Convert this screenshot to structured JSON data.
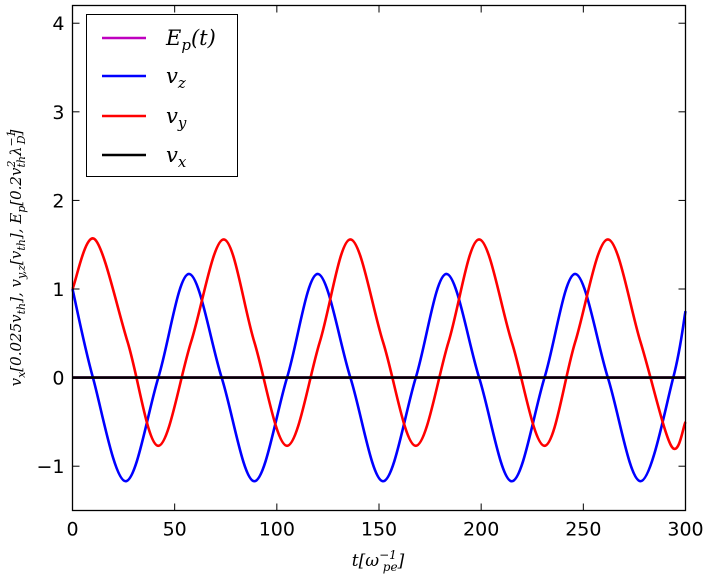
{
  "chart_data": {
    "type": "line",
    "title": "",
    "xlabel": "t[ω_pe^{-1}]",
    "ylabel": "v_x[0.025v_th], v_{y,z}[v_th], E_p[0.2v_th^2 λ_D^{-1}]",
    "xlim": [
      0,
      300
    ],
    "ylim": [
      -1.5,
      4.2
    ],
    "xticks": [
      0,
      50,
      100,
      150,
      200,
      250,
      300
    ],
    "yticks": [
      -1,
      0,
      1,
      2,
      3,
      4
    ],
    "xtick_labels": [
      "0",
      "50",
      "100",
      "150",
      "200",
      "250",
      "300"
    ],
    "ytick_labels": [
      "−1",
      "0",
      "1",
      "2",
      "3",
      "4"
    ],
    "grid": false,
    "legend_position": "top-left",
    "series": [
      {
        "name": "E_p(t)",
        "color": "#bf00bf",
        "x": [
          0,
          300
        ],
        "y": [
          0,
          0
        ]
      },
      {
        "name": "v_z",
        "color": "#0000ff",
        "x": [
          0,
          10,
          26,
          42,
          57,
          73,
          89,
          105,
          120,
          136,
          152,
          168,
          183,
          199,
          215,
          231,
          246,
          262,
          278,
          294,
          300
        ],
        "y": [
          1.0,
          0.0,
          -1.17,
          0.0,
          1.17,
          0.0,
          -1.17,
          0.0,
          1.17,
          0.0,
          -1.17,
          0.0,
          1.17,
          0.0,
          -1.17,
          0.0,
          1.17,
          0.0,
          -1.17,
          0.0,
          0.75
        ]
      },
      {
        "name": "v_y",
        "color": "#ff0000",
        "x": [
          0,
          11,
          27,
          42,
          58,
          74,
          89,
          105,
          121,
          136,
          152,
          168,
          184,
          199,
          215,
          231,
          246,
          262,
          278,
          293,
          300
        ],
        "y": [
          1.0,
          1.56,
          0.4,
          -0.77,
          0.4,
          1.56,
          0.4,
          -0.77,
          0.4,
          1.56,
          0.4,
          -0.77,
          0.4,
          1.56,
          0.4,
          -0.77,
          0.4,
          1.56,
          0.4,
          -0.77,
          -0.5
        ]
      },
      {
        "name": "v_x",
        "color": "#000000",
        "x": [
          0,
          300
        ],
        "y": [
          0,
          0
        ]
      }
    ]
  }
}
